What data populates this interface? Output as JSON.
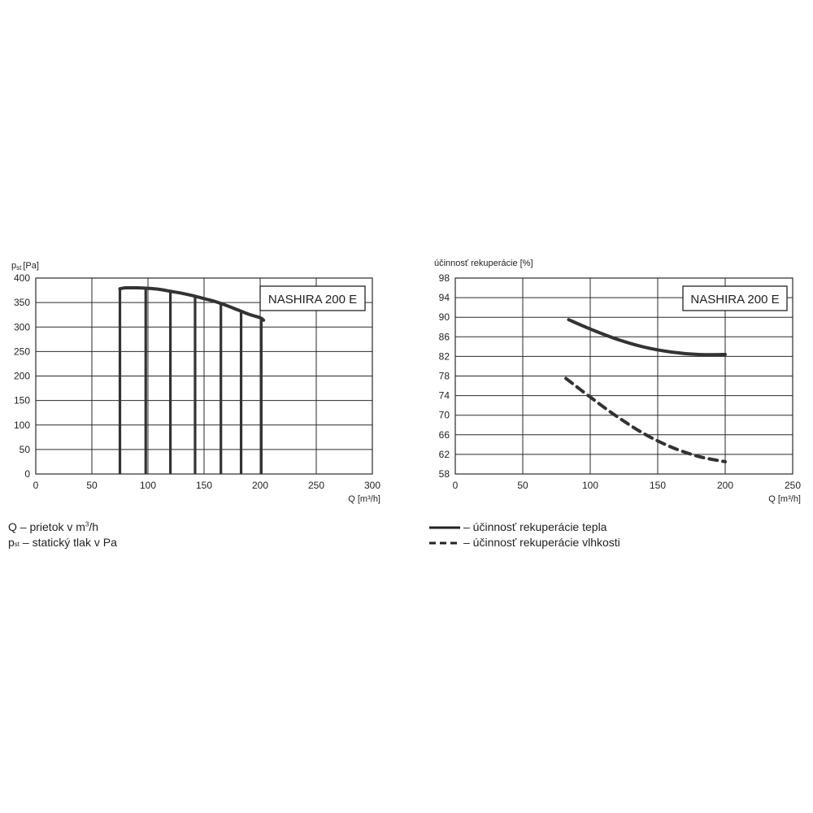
{
  "chart_data": [
    {
      "type": "line",
      "title_badge": "NASHIRA 200 E",
      "ylabel_main": "p",
      "ylabel_sub": "st",
      "ylabel_unit": "[Pa]",
      "xlabel": "Q [m³/h]",
      "xlim": [
        0,
        300
      ],
      "ylim": [
        0,
        400
      ],
      "xticks": [
        0,
        50,
        100,
        150,
        200,
        250,
        300
      ],
      "yticks": [
        0,
        50,
        100,
        150,
        200,
        250,
        300,
        350,
        400
      ],
      "grid": true,
      "series": [
        {
          "x": [
            75,
            80,
            90,
            100,
            110,
            120,
            130,
            140,
            150,
            160,
            170,
            180,
            190,
            200,
            203
          ],
          "y": [
            378,
            380,
            380,
            379,
            377,
            373,
            369,
            364,
            358,
            352,
            344,
            335,
            326,
            319,
            314
          ]
        }
      ],
      "verticals": [
        {
          "x": 75,
          "top": 378
        },
        {
          "x": 98,
          "top": 379
        },
        {
          "x": 120,
          "top": 374
        },
        {
          "x": 142,
          "top": 364
        },
        {
          "x": 165,
          "top": 351
        },
        {
          "x": 183,
          "top": 334
        },
        {
          "x": 201,
          "top": 318
        }
      ]
    },
    {
      "type": "line",
      "title_badge": "NASHIRA 200 E",
      "ylabel": "účinnosť rekuperácie [%]",
      "xlabel": "Q [m³/h]",
      "xlim": [
        0,
        250
      ],
      "ylim": [
        58,
        98
      ],
      "xticks": [
        0,
        50,
        100,
        150,
        200,
        250
      ],
      "yticks": [
        58,
        62,
        66,
        70,
        74,
        78,
        82,
        86,
        90,
        94,
        98
      ],
      "grid": true,
      "series": [
        {
          "name": "účinnosť rekuperácie tepla",
          "style": "solid",
          "x": [
            84,
            100,
            120,
            140,
            160,
            180,
            200
          ],
          "y": [
            89.5,
            87.6,
            85.5,
            83.9,
            82.9,
            82.4,
            82.4
          ]
        },
        {
          "name": "účinnosť rekuperácie vlhkosti",
          "style": "dashed",
          "x": [
            82,
            100,
            120,
            140,
            160,
            180,
            200
          ],
          "y": [
            77.5,
            73.7,
            69.7,
            66.2,
            63.5,
            61.6,
            60.5
          ]
        }
      ]
    }
  ],
  "legend_left": {
    "line1_pre": "Q – prietok v m",
    "line1_sup": "3",
    "line1_post": "/h",
    "line2_main": "p",
    "line2_sub": "st",
    "line2_post": " – statický tlak v Pa"
  },
  "legend_right": {
    "solid_label": "– účinnosť rekuperácie tepla",
    "dashed_label": "– účinnosť rekuperácie vlhkosti"
  }
}
